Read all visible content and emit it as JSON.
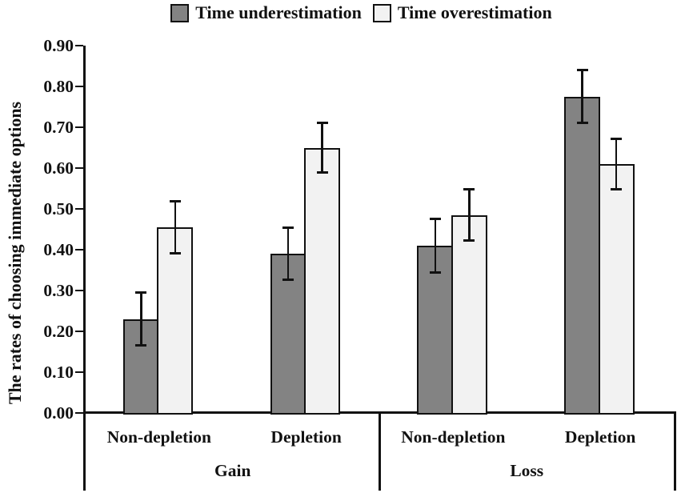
{
  "figure": {
    "background_color": "#ffffff",
    "text_color": "#111111"
  },
  "chart_data": {
    "type": "bar",
    "title": "",
    "xlabel": "",
    "ylabel": "The rates of choosing immediate options",
    "ylim": [
      0,
      0.9
    ],
    "ytick_step": 0.1,
    "ytick_labels": [
      "0.00",
      "0.10",
      "0.20",
      "0.30",
      "0.40",
      "0.50",
      "0.60",
      "0.70",
      "0.80",
      "0.90"
    ],
    "grid": false,
    "legend_position": "top-center",
    "error_bars": true,
    "categories": [
      "Non-depletion",
      "Depletion",
      "Non-depletion",
      "Depletion"
    ],
    "group_labels": [
      "Gain",
      "Loss"
    ],
    "category_group_index": [
      0,
      0,
      1,
      1
    ],
    "series": [
      {
        "name": "Time underestimation",
        "color": "#838383",
        "values": [
          0.23,
          0.39,
          0.41,
          0.775
        ],
        "errors": [
          0.065,
          0.063,
          0.065,
          0.065
        ]
      },
      {
        "name": "Time overestimation",
        "color": "#f2f2f2",
        "values": [
          0.455,
          0.65,
          0.485,
          0.61
        ],
        "errors": [
          0.063,
          0.061,
          0.063,
          0.062
        ]
      }
    ],
    "axis_color": "#111111",
    "error_bar_color": "#111111"
  }
}
